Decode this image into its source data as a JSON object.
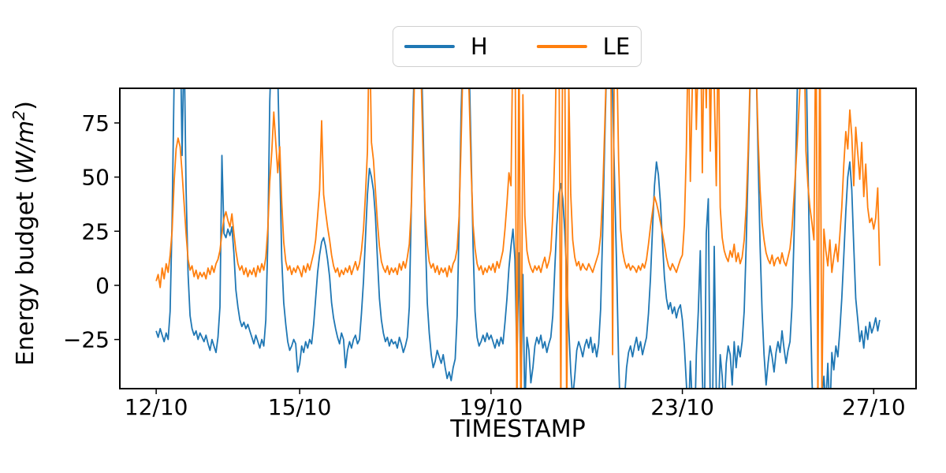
{
  "chart_data": {
    "type": "line",
    "title": "",
    "xlabel": "TIMESTAMP",
    "ylabel": "Energy budget (W/m²)",
    "ylabel_parts": {
      "prefix": "Energy budget (",
      "math": "W/m",
      "sup": "2",
      "suffix": ")"
    },
    "x_start_label": "12/10",
    "step_hours": 1,
    "xlim_days": [
      -0.76,
      15.885
    ],
    "ylim": [
      -47.7,
      91.0
    ],
    "grid": false,
    "legend_position": "upper center",
    "x_ticks": [
      {
        "t_days": 0,
        "label": "12/10"
      },
      {
        "t_days": 3,
        "label": "15/10"
      },
      {
        "t_days": 7,
        "label": "19/10"
      },
      {
        "t_days": 11,
        "label": "23/10"
      },
      {
        "t_days": 15,
        "label": "27/10"
      }
    ],
    "y_ticks": [
      {
        "v": 75,
        "label": "75"
      },
      {
        "v": 50,
        "label": "50"
      },
      {
        "v": 25,
        "label": "25"
      },
      {
        "v": 0,
        "label": "0"
      },
      {
        "v": -25,
        "label": "−25"
      }
    ],
    "series": [
      {
        "name": "H",
        "color": "#1f77b4",
        "values": [
          -21,
          -24,
          -20,
          -23,
          -26,
          -22,
          -25,
          -12,
          30,
          95,
          118,
          126,
          122,
          60,
          115,
          45,
          5,
          -14,
          -20,
          -23,
          -21,
          -25,
          -22,
          -24,
          -26,
          -23,
          -27,
          -30,
          -25,
          -28,
          -31,
          -24,
          -10,
          60,
          24,
          22,
          26,
          23,
          27,
          15,
          -2,
          -10,
          -16,
          -19,
          -17,
          -20,
          -18,
          -21,
          -24,
          -27,
          -23,
          -26,
          -29,
          -25,
          -28,
          -16,
          20,
          85,
          115,
          125,
          119,
          98,
          55,
          12,
          -8,
          -18,
          -26,
          -30,
          -28,
          -25,
          -27,
          -40,
          -36,
          -28,
          -31,
          -26,
          -29,
          -25,
          -27,
          -18,
          -6,
          6,
          14,
          20,
          22,
          18,
          12,
          4,
          -8,
          -15,
          -20,
          -24,
          -27,
          -22,
          -25,
          -38,
          -30,
          -26,
          -29,
          -25,
          -23,
          -27,
          -25,
          -13,
          2,
          22,
          42,
          54,
          50,
          44,
          32,
          12,
          -6,
          -16,
          -22,
          -26,
          -24,
          -28,
          -25,
          -27,
          -26,
          -29,
          -24,
          -27,
          -31,
          -28,
          -24,
          -10,
          35,
          85,
          118,
          128,
          123,
          108,
          70,
          25,
          -8,
          -22,
          -32,
          -38,
          -35,
          -30,
          -33,
          -36,
          -32,
          -38,
          -43,
          -40,
          -44,
          -38,
          -34,
          -14,
          28,
          80,
          112,
          126,
          120,
          102,
          62,
          18,
          -12,
          -24,
          -28,
          -26,
          -23,
          -26,
          -22,
          -25,
          -23,
          -26,
          -29,
          -25,
          -28,
          -24,
          -27,
          -17,
          -6,
          8,
          18,
          26,
          12,
          -35,
          15,
          -52,
          5,
          -58,
          -24,
          -30,
          -45,
          -38,
          -28,
          -24,
          -27,
          -23,
          -29,
          -26,
          -31,
          -27,
          -24,
          -14,
          8,
          28,
          42,
          47,
          40,
          25,
          5,
          -20,
          -40,
          -52,
          -42,
          -30,
          -26,
          -29,
          -33,
          -28,
          -25,
          -29,
          -24,
          -31,
          -27,
          -33,
          -27,
          -11,
          25,
          65,
          102,
          124,
          112,
          88,
          48,
          8,
          -35,
          -62,
          -75,
          -52,
          -38,
          -31,
          -28,
          -33,
          -28,
          -24,
          -30,
          -26,
          -32,
          -28,
          -24,
          -13,
          3,
          26,
          46,
          57,
          51,
          38,
          20,
          4,
          -6,
          -11,
          -8,
          -13,
          -10,
          -15,
          -11,
          -9,
          -16,
          -28,
          -45,
          -62,
          -35,
          -55,
          -72,
          -32,
          -12,
          16,
          -42,
          -68,
          24,
          40,
          -58,
          -72,
          18,
          -48,
          -62,
          -32,
          -42,
          -58,
          -36,
          -28,
          -32,
          -46,
          -26,
          -38,
          -28,
          -33,
          -26,
          -12,
          18,
          55,
          92,
          122,
          126,
          104,
          58,
          18,
          -12,
          -32,
          -46,
          -36,
          -28,
          -33,
          -40,
          -31,
          -26,
          -31,
          -21,
          -29,
          -36,
          -30,
          -26,
          -10,
          22,
          62,
          105,
          128,
          118,
          96,
          112,
          55,
          5,
          -42,
          -72,
          -58,
          -46,
          -66,
          -52,
          -42,
          -55,
          -36,
          -60,
          -31,
          -39,
          -28,
          -33,
          -21,
          -6,
          14,
          34,
          50,
          57,
          44,
          18,
          -6,
          -16,
          -26,
          -21,
          -29,
          -19,
          -25,
          -17,
          -22,
          -19,
          -15,
          -21,
          -16
        ]
      },
      {
        "name": "LE",
        "color": "#ff7f0e",
        "values": [
          2,
          5,
          -1,
          8,
          3,
          10,
          6,
          14,
          25,
          48,
          63,
          68,
          64,
          52,
          38,
          24,
          12,
          7,
          9,
          4,
          7,
          3,
          6,
          4,
          6,
          3,
          8,
          5,
          9,
          6,
          10,
          12,
          16,
          24,
          31,
          34,
          30,
          27,
          33,
          24,
          16,
          10,
          7,
          9,
          5,
          8,
          4,
          7,
          5,
          8,
          4,
          9,
          6,
          10,
          7,
          13,
          26,
          48,
          62,
          80,
          66,
          52,
          64,
          38,
          20,
          11,
          7,
          9,
          5,
          8,
          6,
          9,
          7,
          4,
          9,
          6,
          10,
          7,
          11,
          15,
          21,
          32,
          44,
          76,
          42,
          34,
          27,
          21,
          14,
          9,
          6,
          8,
          4,
          7,
          5,
          8,
          6,
          9,
          5,
          8,
          11,
          7,
          10,
          16,
          26,
          42,
          62,
          122,
          66,
          58,
          44,
          29,
          18,
          11,
          8,
          6,
          9,
          5,
          8,
          6,
          8,
          5,
          10,
          7,
          11,
          8,
          13,
          19,
          36,
          72,
          112,
          128,
          118,
          94,
          58,
          33,
          19,
          11,
          8,
          10,
          6,
          9,
          5,
          8,
          6,
          8,
          4,
          9,
          6,
          10,
          12,
          17,
          32,
          66,
          106,
          124,
          114,
          88,
          54,
          28,
          17,
          10,
          7,
          9,
          5,
          8,
          6,
          9,
          7,
          10,
          6,
          11,
          8,
          12,
          16,
          26,
          38,
          52,
          46,
          118,
          132,
          -70,
          122,
          -75,
          88,
          32,
          16,
          11,
          8,
          6,
          9,
          7,
          9,
          6,
          10,
          13,
          8,
          11,
          16,
          32,
          62,
          118,
          132,
          -60,
          126,
          108,
          -65,
          92,
          42,
          21,
          13,
          9,
          11,
          7,
          10,
          8,
          7,
          10,
          8,
          6,
          9,
          12,
          15,
          23,
          42,
          72,
          104,
          128,
          122,
          -32,
          132,
          112,
          58,
          26,
          16,
          11,
          8,
          10,
          7,
          9,
          8,
          6,
          9,
          7,
          10,
          8,
          12,
          19,
          27,
          34,
          41,
          38,
          34,
          29,
          24,
          19,
          13,
          9,
          7,
          10,
          8,
          6,
          9,
          12,
          14,
          28,
          62,
          118,
          48,
          92,
          128,
          72,
          108,
          132,
          52,
          122,
          82,
          138,
          62,
          128,
          92,
          46,
          118,
          36,
          22,
          16,
          13,
          11,
          16,
          13,
          19,
          11,
          15,
          10,
          13,
          21,
          36,
          62,
          96,
          124,
          128,
          102,
          68,
          44,
          29,
          21,
          15,
          12,
          10,
          14,
          9,
          12,
          13,
          10,
          15,
          11,
          9,
          13,
          17,
          26,
          41,
          56,
          72,
          92,
          128,
          122,
          62,
          46,
          36,
          29,
          21,
          132,
          -58,
          126,
          -52,
          26,
          16,
          9,
          21,
          6,
          13,
          19,
          11,
          23,
          36,
          56,
          71,
          63,
          81,
          69,
          46,
          73,
          61,
          49,
          66,
          41,
          56,
          36,
          29,
          31,
          26,
          31,
          45,
          9
        ]
      }
    ]
  }
}
